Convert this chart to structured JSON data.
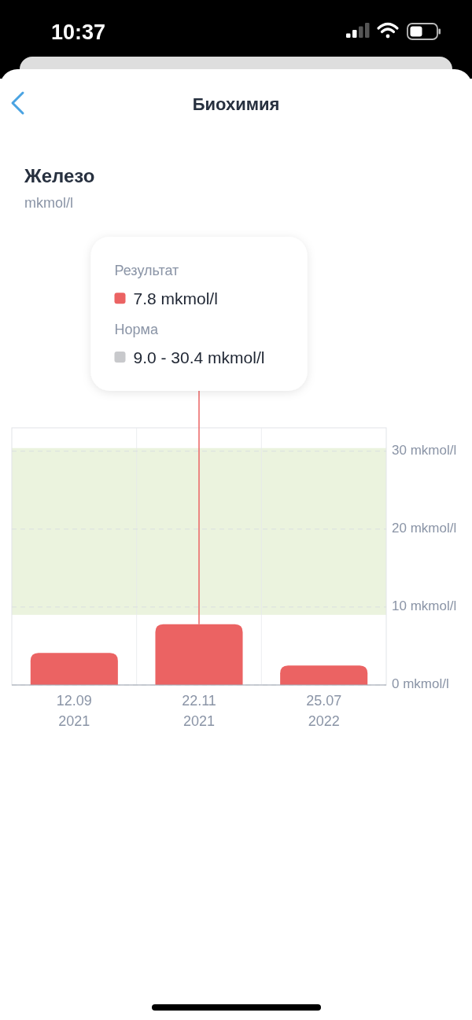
{
  "chart_data": {
    "type": "bar",
    "title": "Железо",
    "subtitle": "mkmol/l",
    "categories": [
      "12.09\n2021",
      "22.11\n2021",
      "25.07\n2022"
    ],
    "values": [
      4.1,
      7.8,
      2.5
    ],
    "color": "#eb6363",
    "ylim": [
      0,
      33
    ],
    "yticks": [
      {
        "value": 0,
        "label": "0 mkmol/l"
      },
      {
        "value": 10,
        "label": "10 mkmol/l"
      },
      {
        "value": 20,
        "label": "20 mkmol/l"
      },
      {
        "value": 30,
        "label": "30 mkmol/l"
      }
    ],
    "grid": true,
    "bands": [
      {
        "axis": "y",
        "from": 9.0,
        "to": 30.4,
        "color": "#ebf3de"
      }
    ],
    "ref_lines": [
      {
        "axis": "x",
        "value": "22.11\n2021",
        "color": "#eb6363"
      }
    ],
    "annotations": [
      "10:37",
      "Биохимия",
      "Результат",
      "7.8 mkmol/l",
      "Норма",
      "9.0 - 30.4 mkmol/l"
    ]
  }
}
